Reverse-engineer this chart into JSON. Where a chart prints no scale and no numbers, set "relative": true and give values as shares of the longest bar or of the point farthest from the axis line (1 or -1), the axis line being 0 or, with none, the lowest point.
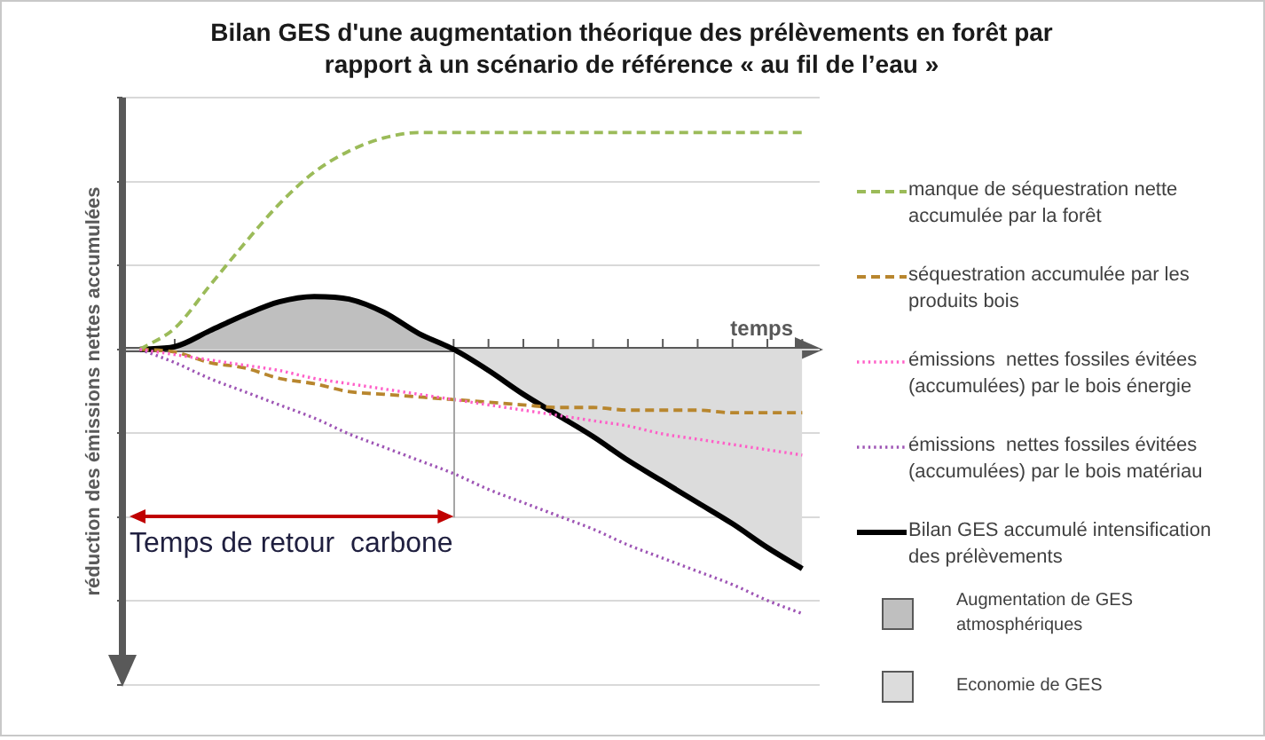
{
  "chart_data": {
    "type": "line",
    "title": "Bilan GES d'une augmentation théorique des prélèvements en forêt par rapport à un scénario de référence « au fil de l’eau »",
    "xlabel": "temps",
    "ylabel": "réduction des émissions nettes accumulées",
    "annotations": [
      "Temps de retour  carbone"
    ],
    "relative": true,
    "grid": "y",
    "legend": "right",
    "categories": [
      null,
      null,
      null,
      null,
      null,
      null,
      null,
      null,
      null,
      null,
      null,
      null,
      null,
      null,
      null,
      null,
      null,
      null,
      null,
      null
    ],
    "series": [
      {
        "name": "manque de séquestration nette accumulée par la forêt",
        "color": "#9bbb59",
        "line_style": "dashed",
        "values": [
          0,
          0.08,
          0.24,
          0.4,
          0.55,
          0.67,
          0.75,
          0.8,
          0.82,
          0.82,
          0.82,
          0.82,
          0.82,
          0.82,
          0.82,
          0.82,
          0.82,
          0.82,
          0.82,
          0.82
        ]
      },
      {
        "name": "séquestration accumulée par les produits bois",
        "color": "#b8862e",
        "line_style": "dashed",
        "values": [
          0,
          -0.01,
          -0.05,
          -0.07,
          -0.11,
          -0.13,
          -0.16,
          -0.17,
          -0.18,
          -0.19,
          -0.2,
          -0.21,
          -0.22,
          -0.22,
          -0.23,
          -0.23,
          -0.23,
          -0.24,
          -0.24,
          -0.24
        ]
      },
      {
        "name": "émissions  nettes fossiles évitées (accumulées) par le bois énergie",
        "color": "#ff5fc8",
        "line_style": "dotted",
        "values": [
          0,
          -0.02,
          -0.04,
          -0.06,
          -0.08,
          -0.11,
          -0.13,
          -0.15,
          -0.17,
          -0.19,
          -0.21,
          -0.23,
          -0.25,
          -0.27,
          -0.29,
          -0.32,
          -0.34,
          -0.36,
          -0.38,
          -0.4
        ]
      },
      {
        "name": "émissions  nettes fossiles évitées (accumulées) par le bois matériau",
        "color": "#9e55b5",
        "line_style": "dotted",
        "values": [
          0,
          -0.05,
          -0.11,
          -0.16,
          -0.21,
          -0.26,
          -0.32,
          -0.37,
          -0.42,
          -0.47,
          -0.53,
          -0.58,
          -0.63,
          -0.68,
          -0.74,
          -0.79,
          -0.84,
          -0.89,
          -0.95,
          -1
        ]
      },
      {
        "name": "Bilan GES accumulé intensification des prélèvements",
        "color": "#000000",
        "line_style": "solid",
        "values": [
          0,
          0.01,
          0.07,
          0.13,
          0.18,
          0.2,
          0.19,
          0.14,
          0.06,
          0,
          -0.08,
          -0.17,
          -0.25,
          -0.33,
          -0.42,
          -0.5,
          -0.58,
          -0.66,
          -0.75,
          -0.83
        ]
      },
      {
        "name": "Augmentation de GES atmosphériques",
        "type": "area",
        "color": "#bfbfbf",
        "values": [
          0,
          0.01,
          0.07,
          0.13,
          0.18,
          0.2,
          0.19,
          0.14,
          0.06,
          0,
          null,
          null,
          null,
          null,
          null,
          null,
          null,
          null,
          null,
          null
        ]
      },
      {
        "name": "Economie de GES",
        "type": "area",
        "color": "#dcdcdc",
        "values": [
          null,
          null,
          null,
          null,
          null,
          null,
          null,
          null,
          null,
          0,
          -0.08,
          -0.17,
          -0.25,
          -0.33,
          -0.42,
          -0.5,
          -0.58,
          -0.66,
          -0.75,
          -0.83
        ]
      }
    ]
  }
}
